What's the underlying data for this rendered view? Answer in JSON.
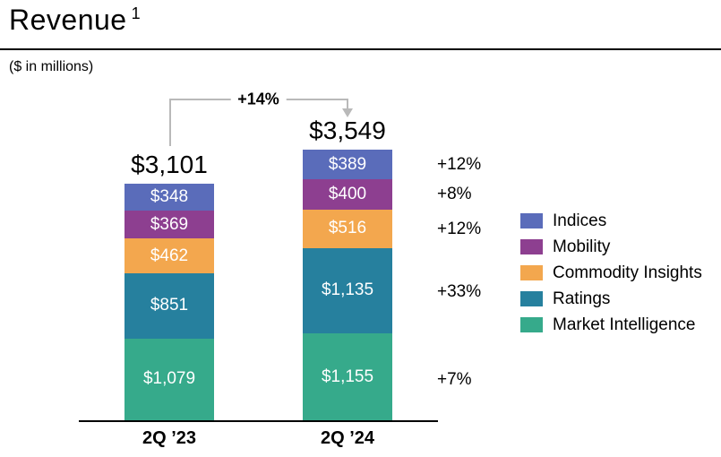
{
  "header": {
    "title": "Revenue",
    "footnote_marker": "1",
    "units_note": "($ in millions)"
  },
  "chart_data": {
    "type": "bar",
    "subtype": "stacked",
    "title": "Revenue",
    "units": "$ in millions",
    "categories": [
      "2Q ’23",
      "2Q ’24"
    ],
    "stack_order_top_to_bottom": [
      "Indices",
      "Mobility",
      "Commodity Insights",
      "Ratings",
      "Market Intelligence"
    ],
    "series": [
      {
        "name": "Indices",
        "color": "#5a6cba",
        "values": [
          348,
          389
        ],
        "value_labels": [
          "$348",
          "$389"
        ],
        "yoy_change": "+12%"
      },
      {
        "name": "Mobility",
        "color": "#8d3f90",
        "values": [
          369,
          400
        ],
        "value_labels": [
          "$369",
          "$400"
        ],
        "yoy_change": "+8%"
      },
      {
        "name": "Commodity Insights",
        "color": "#f3a74e",
        "values": [
          462,
          516
        ],
        "value_labels": [
          "$462",
          "$516"
        ],
        "yoy_change": "+12%"
      },
      {
        "name": "Ratings",
        "color": "#26809e",
        "values": [
          851,
          1135
        ],
        "value_labels": [
          "$851",
          "$1,135"
        ],
        "yoy_change": "+33%"
      },
      {
        "name": "Market Intelligence",
        "color": "#36aa8b",
        "values": [
          1079,
          1155
        ],
        "value_labels": [
          "$1,079",
          "$1,155"
        ],
        "yoy_change": "+7%"
      }
    ],
    "totals": {
      "values": [
        3101,
        3549
      ],
      "labels": [
        "$3,101",
        "$3,549"
      ]
    },
    "total_growth_label": "+14%",
    "arrow_color": "#b9b9b9",
    "legend": {
      "position": "right",
      "entries": [
        "Indices",
        "Mobility",
        "Commodity Insights",
        "Ratings",
        "Market Intelligence"
      ]
    },
    "grid": false
  }
}
